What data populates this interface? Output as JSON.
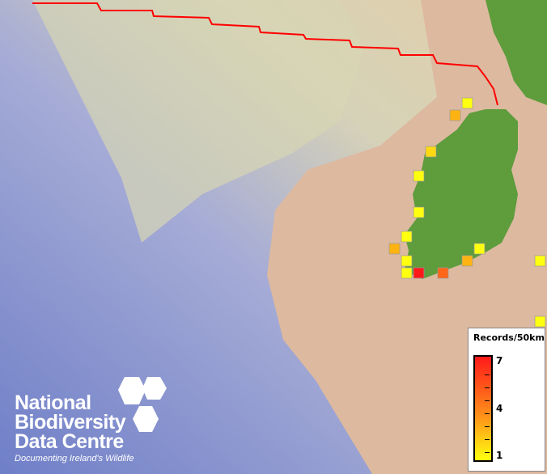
{
  "map": {
    "boundary_color": "#ff0000",
    "records": [
      {
        "value": 1
      },
      {
        "value": 3
      },
      {
        "value": 2
      },
      {
        "value": 1
      },
      {
        "value": 1
      },
      {
        "value": 1
      },
      {
        "value": 3
      },
      {
        "value": 1
      },
      {
        "value": 1
      },
      {
        "value": 3
      },
      {
        "value": 1
      },
      {
        "value": 1
      },
      {
        "value": 7
      },
      {
        "value": 5
      },
      {
        "value": 1
      }
    ]
  },
  "legend": {
    "title": "Records/50km",
    "max_label": "7",
    "mid_label": "4",
    "min_label": "1",
    "color_max": "#ff1a1a",
    "color_min": "#ffff10"
  },
  "logo": {
    "line1": "National",
    "line2": "Biodiversity",
    "line3": "Data Centre",
    "tagline": "Documenting Ireland's Wildlife"
  }
}
